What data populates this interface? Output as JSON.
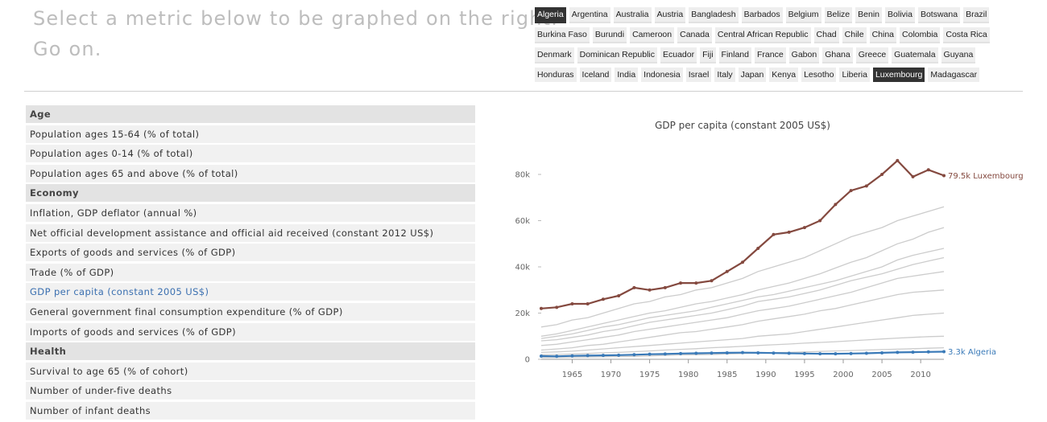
{
  "header": {
    "line1": "Select a metric below to be graphed on the right.",
    "line2": "Go on."
  },
  "countries": [
    {
      "name": "Algeria",
      "selected": true
    },
    {
      "name": "Argentina",
      "selected": false
    },
    {
      "name": "Australia",
      "selected": false
    },
    {
      "name": "Austria",
      "selected": false
    },
    {
      "name": "Bangladesh",
      "selected": false
    },
    {
      "name": "Barbados",
      "selected": false
    },
    {
      "name": "Belgium",
      "selected": false
    },
    {
      "name": "Belize",
      "selected": false
    },
    {
      "name": "Benin",
      "selected": false
    },
    {
      "name": "Bolivia",
      "selected": false
    },
    {
      "name": "Botswana",
      "selected": false
    },
    {
      "name": "Brazil",
      "selected": false
    },
    {
      "name": "Burkina Faso",
      "selected": false
    },
    {
      "name": "Burundi",
      "selected": false
    },
    {
      "name": "Cameroon",
      "selected": false
    },
    {
      "name": "Canada",
      "selected": false
    },
    {
      "name": "Central African Republic",
      "selected": false
    },
    {
      "name": "Chad",
      "selected": false
    },
    {
      "name": "Chile",
      "selected": false
    },
    {
      "name": "China",
      "selected": false
    },
    {
      "name": "Colombia",
      "selected": false
    },
    {
      "name": "Costa Rica",
      "selected": false
    },
    {
      "name": "Denmark",
      "selected": false
    },
    {
      "name": "Dominican Republic",
      "selected": false
    },
    {
      "name": "Ecuador",
      "selected": false
    },
    {
      "name": "Fiji",
      "selected": false
    },
    {
      "name": "Finland",
      "selected": false
    },
    {
      "name": "France",
      "selected": false
    },
    {
      "name": "Gabon",
      "selected": false
    },
    {
      "name": "Ghana",
      "selected": false
    },
    {
      "name": "Greece",
      "selected": false
    },
    {
      "name": "Guatemala",
      "selected": false
    },
    {
      "name": "Guyana",
      "selected": false
    },
    {
      "name": "Honduras",
      "selected": false
    },
    {
      "name": "Iceland",
      "selected": false
    },
    {
      "name": "India",
      "selected": false
    },
    {
      "name": "Indonesia",
      "selected": false
    },
    {
      "name": "Israel",
      "selected": false
    },
    {
      "name": "Italy",
      "selected": false
    },
    {
      "name": "Japan",
      "selected": false
    },
    {
      "name": "Kenya",
      "selected": false
    },
    {
      "name": "Lesotho",
      "selected": false
    },
    {
      "name": "Liberia",
      "selected": false
    },
    {
      "name": "Luxembourg",
      "selected": true
    },
    {
      "name": "Madagascar",
      "selected": false
    }
  ],
  "metrics": [
    {
      "label": "Age",
      "group": true,
      "active": false
    },
    {
      "label": "Population ages 15-64 (% of total)",
      "group": false,
      "active": false
    },
    {
      "label": "Population ages 0-14 (% of total)",
      "group": false,
      "active": false
    },
    {
      "label": "Population ages 65 and above (% of total)",
      "group": false,
      "active": false
    },
    {
      "label": "Economy",
      "group": true,
      "active": false
    },
    {
      "label": "Inflation, GDP deflator (annual %)",
      "group": false,
      "active": false
    },
    {
      "label": "Net official development assistance and official aid received (constant 2012 US$)",
      "group": false,
      "active": false
    },
    {
      "label": "Exports of goods and services (% of GDP)",
      "group": false,
      "active": false
    },
    {
      "label": "Trade (% of GDP)",
      "group": false,
      "active": false
    },
    {
      "label": "GDP per capita (constant 2005 US$)",
      "group": false,
      "active": true
    },
    {
      "label": "General government final consumption expenditure (% of GDP)",
      "group": false,
      "active": false
    },
    {
      "label": "Imports of goods and services (% of GDP)",
      "group": false,
      "active": false
    },
    {
      "label": "Health",
      "group": true,
      "active": false
    },
    {
      "label": "Survival to age 65 (% of cohort)",
      "group": false,
      "active": false
    },
    {
      "label": "Number of under-five deaths",
      "group": false,
      "active": false
    },
    {
      "label": "Number of infant deaths",
      "group": false,
      "active": false
    }
  ],
  "chart_data": {
    "type": "line",
    "title": "GDP per capita (constant 2005 US$)",
    "x": [
      1961,
      1963,
      1965,
      1967,
      1969,
      1971,
      1973,
      1975,
      1977,
      1979,
      1981,
      1983,
      1985,
      1987,
      1989,
      1991,
      1993,
      1995,
      1997,
      1999,
      2001,
      2003,
      2005,
      2007,
      2009,
      2011,
      2013
    ],
    "xlim": [
      1961,
      2013
    ],
    "xticks": [
      1965,
      1970,
      1975,
      1980,
      1985,
      1990,
      1995,
      2000,
      2005,
      2010
    ],
    "ylim": [
      0,
      90000
    ],
    "yticks": [
      0,
      {
        "value": 20000,
        "label": "20k"
      },
      {
        "value": 40000,
        "label": "40k"
      },
      {
        "value": 60000,
        "label": "60k"
      },
      {
        "value": 80000,
        "label": "80k"
      }
    ],
    "series": [
      {
        "name": "Luxembourg",
        "color": "#84493f",
        "values": [
          22000,
          22500,
          24000,
          24000,
          26000,
          27500,
          31000,
          30000,
          31000,
          33000,
          33000,
          34000,
          38000,
          42000,
          48000,
          54000,
          55000,
          57000,
          60000,
          67000,
          73000,
          75000,
          80000,
          86000,
          79000,
          82000,
          79500
        ],
        "value_labels": [
          null,
          null,
          null,
          null,
          null,
          null,
          null,
          null,
          null,
          null,
          null,
          null,
          null,
          null,
          null,
          null,
          null,
          null,
          null,
          null,
          null,
          null,
          null,
          null,
          null,
          null,
          "79.5k Luxembourg"
        ]
      },
      {
        "name": "Algeria",
        "color": "#3a7ab8",
        "values": [
          1400,
          1300,
          1500,
          1600,
          1700,
          1800,
          2000,
          2200,
          2300,
          2500,
          2600,
          2700,
          2800,
          2900,
          2800,
          2700,
          2600,
          2500,
          2400,
          2400,
          2500,
          2600,
          2800,
          3000,
          3100,
          3200,
          3300
        ],
        "value_labels": [
          null,
          null,
          null,
          null,
          null,
          null,
          null,
          null,
          null,
          null,
          null,
          null,
          null,
          null,
          null,
          null,
          null,
          null,
          null,
          null,
          null,
          null,
          null,
          null,
          null,
          null,
          "3.3k Algeria"
        ]
      }
    ],
    "background_series": [
      {
        "color": "#cccccc",
        "values": [
          14000,
          15000,
          17000,
          18000,
          20000,
          22000,
          24000,
          25000,
          27000,
          28000,
          30000,
          31000,
          33000,
          35000,
          38000,
          40000,
          42000,
          44000,
          47000,
          50000,
          53000,
          55000,
          57000,
          60000,
          62000,
          64000,
          66000
        ]
      },
      {
        "color": "#cccccc",
        "values": [
          10000,
          11000,
          12500,
          14000,
          15500,
          17000,
          18500,
          20000,
          21000,
          22500,
          24000,
          25000,
          26500,
          28000,
          30000,
          31500,
          33000,
          35000,
          37000,
          39500,
          42000,
          44000,
          47000,
          50000,
          52000,
          55000,
          57000
        ]
      },
      {
        "color": "#cccccc",
        "values": [
          9000,
          10000,
          11000,
          12500,
          14000,
          15000,
          16500,
          18000,
          19000,
          20000,
          21000,
          22500,
          24000,
          25500,
          27000,
          28000,
          29500,
          31000,
          32500,
          34000,
          36000,
          38000,
          40000,
          43000,
          45000,
          46500,
          48000
        ]
      },
      {
        "color": "#cccccc",
        "values": [
          8000,
          8500,
          9500,
          10500,
          12000,
          13000,
          14500,
          16000,
          17000,
          18000,
          19000,
          20000,
          21500,
          23000,
          25000,
          26000,
          27000,
          28500,
          30000,
          32000,
          34000,
          35500,
          37000,
          39000,
          41000,
          42500,
          44000
        ]
      },
      {
        "color": "#cccccc",
        "values": [
          6000,
          6500,
          7500,
          8500,
          9500,
          10500,
          12000,
          13000,
          14000,
          15000,
          16000,
          17000,
          18000,
          19500,
          21000,
          22000,
          23000,
          24500,
          26000,
          27500,
          29000,
          31000,
          33000,
          35000,
          36000,
          37000,
          38000
        ]
      },
      {
        "color": "#cccccc",
        "values": [
          4000,
          4500,
          5000,
          6000,
          6500,
          7500,
          8500,
          9500,
          10500,
          11500,
          12000,
          13000,
          14000,
          15000,
          16500,
          17500,
          18500,
          19500,
          21000,
          22000,
          23500,
          25000,
          26500,
          28000,
          29000,
          29500,
          30000
        ]
      },
      {
        "color": "#cccccc",
        "values": [
          3000,
          3200,
          3500,
          4000,
          4500,
          5000,
          5500,
          6000,
          6500,
          7000,
          7500,
          8000,
          8500,
          9000,
          10000,
          10500,
          11000,
          12000,
          13000,
          14000,
          15000,
          16000,
          17000,
          18000,
          19000,
          19500,
          20000
        ]
      },
      {
        "color": "#cccccc",
        "values": [
          2000,
          2100,
          2300,
          2500,
          2800,
          3000,
          3300,
          3600,
          4000,
          4300,
          4600,
          5000,
          5300,
          5600,
          6000,
          6300,
          6600,
          7000,
          7300,
          7600,
          8000,
          8400,
          8800,
          9200,
          9500,
          9800,
          10000
        ]
      },
      {
        "color": "#cccccc",
        "values": [
          800,
          850,
          900,
          1000,
          1100,
          1200,
          1300,
          1500,
          1700,
          1900,
          2000,
          2100,
          2300,
          2500,
          2700,
          2900,
          3000,
          3200,
          3400,
          3600,
          3800,
          4000,
          4200,
          4400,
          4600,
          4800,
          5000
        ]
      }
    ]
  }
}
